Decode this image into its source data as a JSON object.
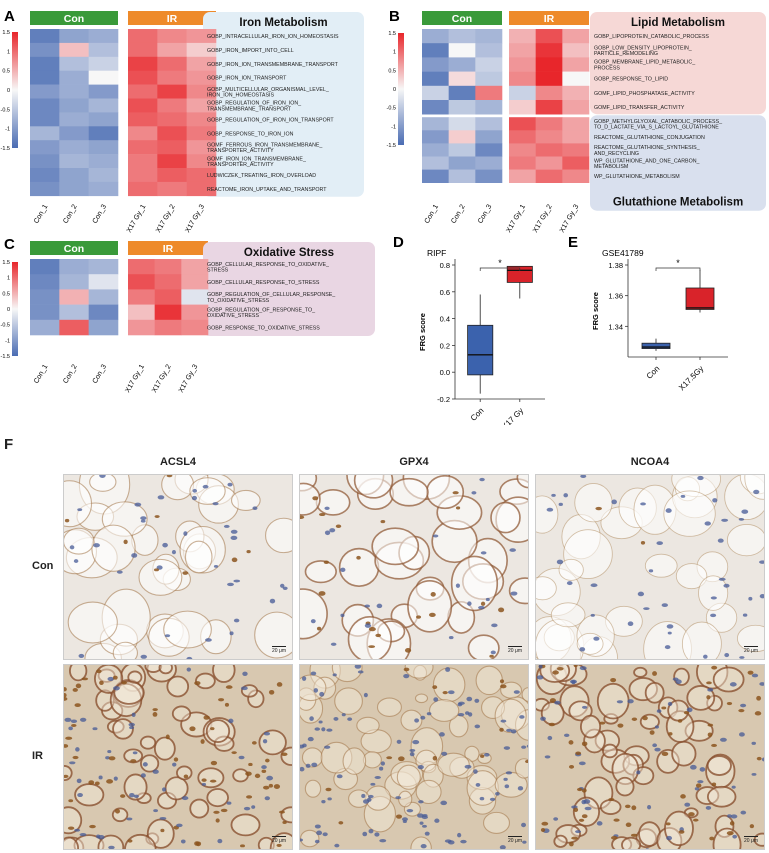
{
  "panels": {
    "A": "A",
    "B": "B",
    "C": "C",
    "D": "D",
    "E": "E",
    "F": "F"
  },
  "groups": {
    "con": "Con",
    "ir": "IR"
  },
  "sample_labels": [
    "Con_1",
    "Con_2",
    "Con_3",
    "X17 Gy_1",
    "X17 Gy_2",
    "X17 Gy_3"
  ],
  "colors": {
    "con_header": "#3a9a3a",
    "ir_header": "#ee8a2a",
    "low": "#4a6cb3",
    "mid": "#f7f7f7",
    "high": "#e8262b",
    "box_con": "#3b62ad",
    "box_ir": "#d9232a",
    "iron_box": "#e2eef6",
    "lipid_box": "#f6d8d6",
    "glut_box": "#d9e0ee",
    "ox_box": "#e9d6e3"
  },
  "legend_ticks": [
    "1.5",
    "1",
    "0.5",
    "0",
    "-0.5",
    "-1",
    "-1.5"
  ],
  "heatmaps": [
    {
      "panel": "A",
      "sections": [
        {
          "title": "Iron Metabolism",
          "terms": [
            "GOBP_INTRACELLULAR_IRON_ION_HOMEOSTASIS",
            "GOBP_IRON_IMPORT_INTO_CELL",
            "GOBP_IRON_ION_TRANSMEMBRANE_TRANSPORT",
            "GOBP_IRON_ION_TRANSPORT",
            "GOBP_MULTICELLULAR_ORGANISMAL_LEVEL_\nIRON_ION_HOMEOSTASIS",
            "GOBP_REGULATION_OF_IRON_ION_\nTRANSMEMBRANE_TRANSPORT",
            "GOBP_REGULATION_OF_IRON_ION_TRANSPORT",
            "GOBP_RESPONSE_TO_IRON_ION",
            "GOMF_FERROUS_IRON_TRANSMEMBRANE_\nTRANSPORTER_ACTIVITY",
            "GOMF_IRON_ION_TRANSMEMBRANE_\nTRANSPORTER_ACTIVITY",
            "LUDWICZEK_TREATING_IRON_OVERLOAD",
            "REACTOME_IRON_UPTAKE_AND_TRANSPORT"
          ],
          "values": [
            [
              -1.3,
              -0.9,
              -0.8,
              1.0,
              0.8,
              0.7
            ],
            [
              -1.1,
              0.4,
              -0.6,
              1.0,
              0.6,
              0.3
            ],
            [
              -1.3,
              -0.6,
              -0.4,
              1.3,
              1.0,
              0.6
            ],
            [
              -1.3,
              -0.8,
              0.0,
              1.2,
              0.9,
              0.7
            ],
            [
              -1.0,
              -0.8,
              -1.0,
              1.0,
              1.3,
              0.8
            ],
            [
              -1.2,
              -0.9,
              -0.7,
              1.2,
              0.9,
              0.6
            ],
            [
              -1.2,
              -0.8,
              -0.9,
              1.1,
              1.0,
              0.8
            ],
            [
              -0.7,
              -1.0,
              -1.3,
              0.8,
              1.2,
              0.9
            ],
            [
              -1.0,
              -0.8,
              -0.9,
              1.0,
              1.1,
              0.7
            ],
            [
              -1.1,
              -0.7,
              -0.8,
              0.9,
              1.3,
              0.8
            ],
            [
              -1.2,
              -0.9,
              -0.7,
              0.9,
              1.1,
              1.0
            ],
            [
              -1.1,
              -0.9,
              -0.8,
              1.0,
              0.9,
              1.0
            ]
          ]
        }
      ]
    },
    {
      "panel": "B",
      "sections": [
        {
          "title": "Lipid Metabolism",
          "terms": [
            "GOBP_LIPOPROTEIN_CATABOLIC_PROCESS",
            "GOBP_LOW_DENSITY_LIPOPROTEIN_\nPARTICLE_REMODELING",
            "GOBP_MEMBRANE_LIPID_METABOLIC_\nPROCESS",
            "GOBP_RESPONSE_TO_LIPID",
            "GOMF_LIPID_PHOSPHATASE_ACTIVITY",
            "GOMF_LIPID_TRANSFER_ACTIVITY"
          ],
          "values": [
            [
              -0.8,
              -0.6,
              -0.7,
              0.5,
              1.2,
              0.6
            ],
            [
              -1.3,
              0.0,
              -0.6,
              0.6,
              1.4,
              0.4
            ],
            [
              -1.0,
              -0.8,
              -0.4,
              0.7,
              1.5,
              0.6
            ],
            [
              -1.3,
              0.2,
              -0.5,
              0.8,
              1.5,
              0.0
            ],
            [
              -0.4,
              -1.3,
              0.9,
              -0.4,
              0.8,
              0.5
            ],
            [
              -1.2,
              -0.5,
              -0.7,
              0.3,
              1.3,
              0.6
            ]
          ]
        },
        {
          "title": "Glutathione Metabolism",
          "terms": [
            "GOBP_METHYLGLYOXAL_CATABOLIC_PROCESS_\nTO_D_LACTATE_VIA_S_LACTOYL_GLUTATHIONE",
            "REACTOME_GLUTATHIONE_CONJUGATION",
            "REACTOME_GLUTATHIONE_SYNTHESIS_\nAND_RECYCLING",
            "WP_GLUTATHIONE_AND_ONE_CARBON_\nMETABOLISM",
            "WP_GLUTATHIONE_METABOLISM"
          ],
          "values": [
            [
              -0.7,
              -0.3,
              -0.6,
              1.2,
              0.9,
              0.6
            ],
            [
              -1.0,
              0.3,
              -0.9,
              1.0,
              0.8,
              0.6
            ],
            [
              -0.8,
              -0.5,
              -1.2,
              0.8,
              1.0,
              0.9
            ],
            [
              -0.6,
              -0.9,
              -0.8,
              0.9,
              0.7,
              1.1
            ],
            [
              -1.2,
              -0.6,
              -1.1,
              0.6,
              1.0,
              0.8
            ]
          ]
        }
      ]
    },
    {
      "panel": "C",
      "sections": [
        {
          "title": "Oxidative Stress",
          "terms": [
            "GOBP_CELLULAR_RESPONSE_TO_OXIDATIVE_\nSTRESS",
            "GOBP_CELLULAR_RESPONSE_TO_STRESS",
            "GOBP_REGULATION_OF_CELLULAR_RESPONSE_\nTO_OXIDATIVE_STRESS",
            "GOBP_REGULATION_OF_RESPONSE_TO_\nOXIDATIVE_STRESS",
            "GOBP_RESPONSE_TO_OXIDATIVE_STRESS"
          ],
          "values": [
            [
              -1.3,
              -0.8,
              -0.7,
              1.0,
              0.9,
              0.6
            ],
            [
              -1.2,
              -0.7,
              -0.2,
              1.2,
              1.0,
              0.6
            ],
            [
              -1.1,
              0.5,
              -0.7,
              0.9,
              1.1,
              -0.2
            ],
            [
              -1.1,
              -0.6,
              -1.2,
              0.4,
              1.4,
              0.7
            ],
            [
              -0.8,
              1.1,
              -0.9,
              0.7,
              0.9,
              0.8
            ]
          ]
        }
      ]
    }
  ],
  "chart_data": [
    {
      "type": "box",
      "title": "RIPF",
      "categories": [
        "Con",
        "X17 Gy"
      ],
      "ylabel": "FRG score",
      "ylim": [
        -0.2,
        0.8
      ],
      "yticks": [
        "0.8",
        "0.6",
        "0.4",
        "0.2",
        "0.0",
        "-0.2"
      ],
      "boxes": [
        {
          "min": -0.16,
          "q1": -0.02,
          "median": 0.13,
          "q3": 0.35,
          "max": 0.58
        },
        {
          "min": 0.55,
          "q1": 0.67,
          "median": 0.76,
          "q3": 0.79,
          "max": 0.79
        }
      ],
      "significance": "*"
    },
    {
      "type": "box",
      "title": "GSE41789",
      "categories": [
        "Con",
        "X17.5Gy"
      ],
      "ylabel": "FRG score",
      "ylim": [
        1.32,
        1.38
      ],
      "yticks": [
        "1.38",
        "1.36",
        "1.34"
      ],
      "boxes": [
        {
          "min": 1.324,
          "q1": 1.3255,
          "median": 1.3265,
          "q3": 1.329,
          "max": 1.332
        },
        {
          "min": 1.349,
          "q1": 1.351,
          "median": 1.352,
          "q3": 1.365,
          "max": 1.377
        }
      ],
      "significance": "*"
    }
  ],
  "ihc": {
    "stains": [
      "ACSL4",
      "GPX4",
      "NCOA4"
    ],
    "conditions": [
      "Con",
      "IR"
    ],
    "scale": "20 μm",
    "intensity": [
      [
        0.25,
        0.7,
        0.05
      ],
      [
        0.85,
        0.25,
        0.85
      ]
    ]
  }
}
